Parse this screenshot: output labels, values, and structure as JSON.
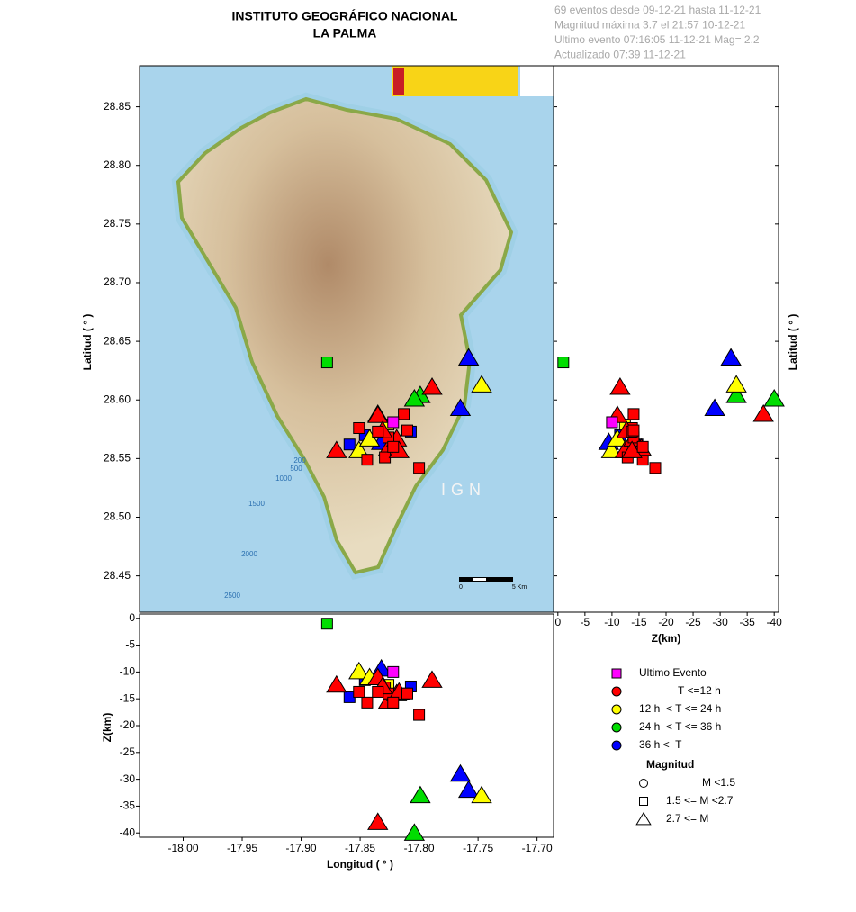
{
  "chart_data": {
    "type": "scatter",
    "title": "INSTITUTO GEOGRÁFICO NACIONAL",
    "subtitle": "LA PALMA",
    "info": [
      "69 eventos desde 09-12-21 hasta 11-12-21",
      "Magnitud máxima 3.7 el 21:57 10-12-21",
      "Ultimo evento  07:16:05 11-12-21  Mag= 2.2",
      "Actualizado  07:39  11-12-21"
    ],
    "xlabel": "Longitud ( ° )",
    "ylabel": "Latitud ( ° )",
    "zlabel": "Z(km)",
    "xlim": [
      -18.037,
      -17.686
    ],
    "xticks": [
      {
        "value": -18.0,
        "label": "-18.00"
      },
      -17.95,
      {
        "value": -17.9,
        "label": "-17.90"
      },
      -17.85,
      {
        "value": -17.8,
        "label": "-17.80"
      },
      -17.75,
      {
        "value": -17.7,
        "label": "-17.70"
      }
    ],
    "ylim": [
      28.419,
      28.885
    ],
    "yticks": [
      28.45,
      {
        "value": 28.5,
        "label": "28.50"
      },
      28.55,
      {
        "value": 28.6,
        "label": "28.60"
      },
      28.65,
      {
        "value": 28.7,
        "label": "28.70"
      },
      28.75,
      {
        "value": 28.8,
        "label": "28.80"
      },
      28.85
    ],
    "zlim": [
      -40.8,
      0.8
    ],
    "zticks": [
      0,
      -5,
      -10,
      -15,
      -20,
      -25,
      -30,
      -35,
      -40
    ],
    "series": [
      {
        "name": "Ultimo Evento",
        "color": "#ff00ff",
        "legend_marker": "square",
        "x": [
          -17.822
        ],
        "y": [
          28.581
        ],
        "z": [
          -10
        ],
        "markers": [
          "square"
        ]
      },
      {
        "name": "T <=12 h",
        "color": "#ff0000",
        "legend_marker": "circle",
        "x": [
          -17.789,
          -17.835,
          -17.87,
          -17.8,
          -17.813,
          -17.844,
          -17.851,
          -17.835,
          -17.826,
          -17.819,
          -17.829,
          -17.826,
          -17.831,
          -17.835,
          -17.817,
          -17.822,
          -17.81
        ],
        "y": [
          28.611,
          28.588,
          28.557,
          28.542,
          28.588,
          28.549,
          28.576,
          28.587,
          28.559,
          28.567,
          28.551,
          28.568,
          28.574,
          28.573,
          28.557,
          28.56,
          28.574
        ],
        "z": [
          -11.5,
          -38,
          -12.4,
          -18,
          -14,
          -15.7,
          -13.7,
          -11,
          -15.4,
          -14,
          -12.9,
          -14,
          -12.7,
          -13.7,
          -13.7,
          -15.7,
          -14
        ],
        "markers": [
          "triangle",
          "triangle",
          "triangle",
          "square",
          "square",
          "square",
          "square",
          "triangle",
          "triangle",
          "triangle",
          "square",
          "square",
          "triangle",
          "square",
          "triangle",
          "square",
          "square"
        ]
      },
      {
        "name": "12 h  < T <= 24 h",
        "color": "#ffff00",
        "legend_marker": "circle",
        "x": [
          -17.747,
          -17.851,
          -17.842,
          -17.826
        ],
        "y": [
          28.613,
          28.557,
          28.567,
          28.579
        ],
        "z": [
          -33,
          -9.9,
          -11,
          -12.4
        ],
        "markers": [
          "triangle",
          "triangle",
          "triangle",
          "square"
        ]
      },
      {
        "name": "24 h  < T <= 36 h",
        "color": "#00dd00",
        "legend_marker": "circle",
        "x": [
          -17.878,
          -17.799,
          -17.804
        ],
        "y": [
          28.632,
          28.604,
          28.601
        ],
        "z": [
          -1,
          -33,
          -40
        ],
        "markers": [
          "square",
          "triangle",
          "triangle"
        ]
      },
      {
        "name": "36 h <  T",
        "color": "#0000ff",
        "legend_marker": "circle",
        "x": [
          -17.758,
          -17.765,
          -17.807,
          -17.859,
          -17.832,
          -17.846
        ],
        "y": [
          28.636,
          28.593,
          28.573,
          28.562,
          28.564,
          28.57
        ],
        "z": [
          -32,
          -29,
          -12.7,
          -14.7,
          -9.4,
          -11.5
        ],
        "markers": [
          "triangle",
          "triangle",
          "square",
          "square",
          "triangle",
          "square"
        ]
      }
    ],
    "magnitude_legend": {
      "title": "Magnitud",
      "items": [
        {
          "label": "M <1.5",
          "marker": "circle"
        },
        {
          "label": "1.5 <= M <2.7",
          "marker": "square"
        },
        {
          "label": "2.7 <= M",
          "marker": "triangle"
        }
      ]
    },
    "map_labels": [
      "200",
      "500",
      "1000",
      "1500",
      "2000",
      "2500",
      "IGN",
      "0",
      "5 Km"
    ]
  }
}
